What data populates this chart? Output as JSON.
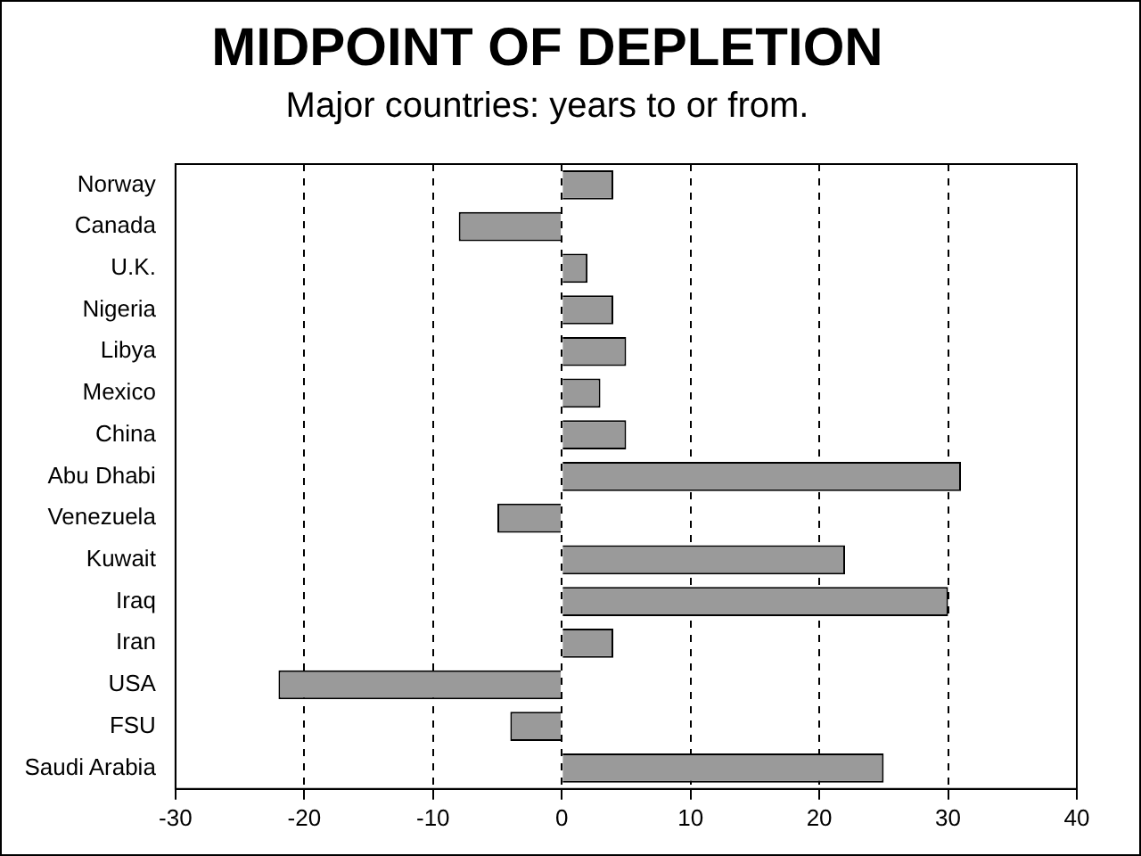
{
  "chart_data": {
    "type": "bar",
    "orientation": "horizontal",
    "title": "MIDPOINT OF DEPLETION",
    "subtitle": "Major countries: years to or from.",
    "categories": [
      "Norway",
      "Canada",
      "U.K.",
      "Nigeria",
      "Libya",
      "Mexico",
      "China",
      "Abu Dhabi",
      "Venezuela",
      "Kuwait",
      "Iraq",
      "Iran",
      "USA",
      "FSU",
      "Saudi Arabia"
    ],
    "values": [
      4,
      -8,
      2,
      4,
      5,
      3,
      5,
      31,
      -5,
      22,
      30,
      4,
      -22,
      -4,
      25
    ],
    "color": "#9a9a9a",
    "xlim": [
      -30,
      40
    ],
    "xticks": [
      -30,
      -20,
      -10,
      0,
      10,
      20,
      30,
      40
    ],
    "grid": "x"
  }
}
